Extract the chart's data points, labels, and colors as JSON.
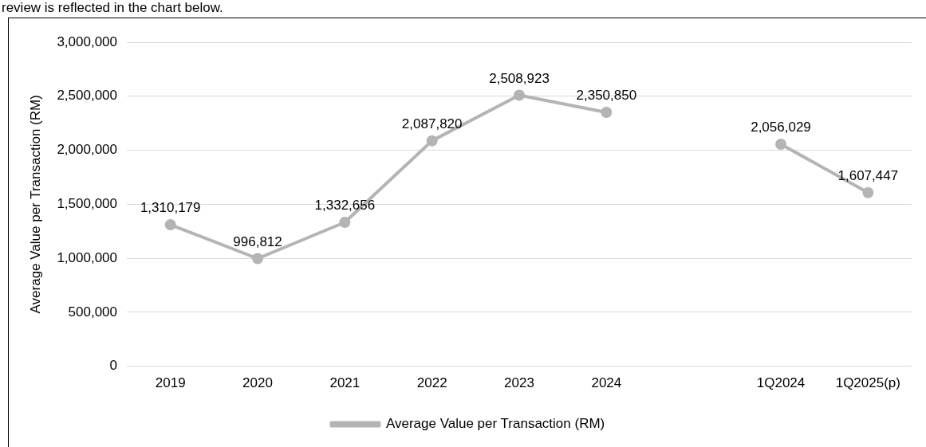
{
  "chart_data": {
    "type": "line",
    "ylabel": "Average Value per Transaction (RM)",
    "annotations": [
      "review is reflected in the chart below."
    ],
    "categories": [
      "2019",
      "2020",
      "2021",
      "2022",
      "2023",
      "2024",
      null,
      "1Q2024",
      "1Q2025(p)"
    ],
    "series": [
      {
        "name": "Average Value per Transaction (RM)",
        "color": "#b4b4b4",
        "values": [
          1310179,
          996812,
          1332656,
          2087820,
          2508923,
          2350850,
          null,
          2056029,
          1607447
        ],
        "value_labels": [
          "1,310,179",
          "996,812",
          "1,332,656",
          "2,087,820",
          "2,508,923",
          "2,350,850",
          null,
          "2,056,029",
          "1,607,447"
        ]
      }
    ],
    "ylim": [
      0,
      3000000
    ],
    "yticks": [
      {
        "value": 0,
        "label": "0"
      },
      {
        "value": 500000,
        "label": "500,000"
      },
      {
        "value": 1000000,
        "label": "1,000,000"
      },
      {
        "value": 1500000,
        "label": "1,500,000"
      },
      {
        "value": 2000000,
        "label": "2,000,000"
      },
      {
        "value": 2500000,
        "label": "2,500,000"
      },
      {
        "value": 3000000,
        "label": "3,000,000"
      }
    ],
    "grid": "y",
    "legend": "bottom",
    "marker": "circle",
    "line_style": "solid"
  }
}
